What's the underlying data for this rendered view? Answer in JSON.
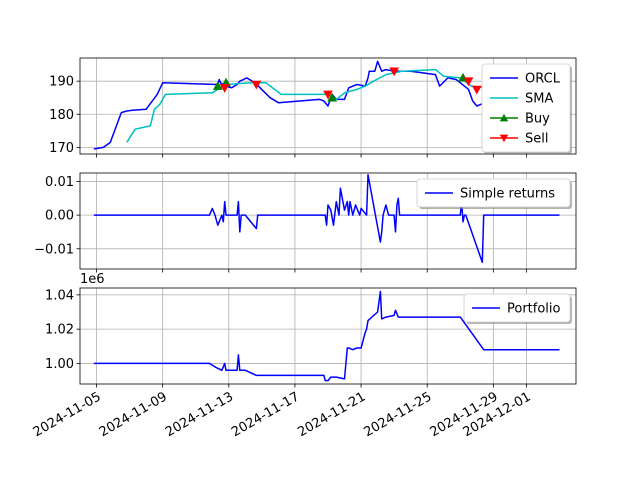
{
  "chart_data": [
    {
      "type": "line",
      "panel": "price",
      "ylim": [
        168,
        197
      ],
      "yticks": [
        170,
        180,
        190
      ],
      "grid": true,
      "legend_position": "top-right",
      "series": [
        {
          "name": "ORCL",
          "color": "#0000ff",
          "kind": "line",
          "x": [
            "2024-11-04T20:00",
            "2024-11-05T10:00",
            "2024-11-05T20:00",
            "2024-11-06T12:00",
            "2024-11-06T20:00",
            "2024-11-07T04:00",
            "2024-11-08T00:00",
            "2024-11-08T16:00",
            "2024-11-09T00:00",
            "2024-11-12T08:00",
            "2024-11-12T10:00",
            "2024-11-12T12:00",
            "2024-11-12T20:00",
            "2024-11-13T04:00",
            "2024-11-13T12:00",
            "2024-11-13T16:00",
            "2024-11-14T02:00",
            "2024-11-14T14:00",
            "2024-11-15T12:00",
            "2024-11-16T00:00",
            "2024-11-18T12:00",
            "2024-11-18T18:00",
            "2024-11-19T00:00",
            "2024-11-19T06:00",
            "2024-11-19T12:00",
            "2024-11-20T00:00",
            "2024-11-20T06:00",
            "2024-11-20T18:00",
            "2024-11-21T06:00",
            "2024-11-21T10:00",
            "2024-11-21T12:00",
            "2024-11-21T20:00",
            "2024-11-22T00:00",
            "2024-11-22T06:00",
            "2024-11-22T12:00",
            "2024-11-23T00:00",
            "2024-11-24T00:00",
            "2024-11-25T12:00",
            "2024-11-25T18:00",
            "2024-11-26T06:00",
            "2024-11-26T18:00",
            "2024-11-27T06:00",
            "2024-11-27T12:00",
            "2024-11-27T18:00",
            "2024-11-28T00:00",
            "2024-11-28T06:00",
            "2024-11-28T12:00"
          ],
          "y": [
            169.5,
            170.0,
            171.5,
            180.5,
            181.0,
            181.2,
            181.5,
            186.0,
            189.5,
            189.0,
            190.5,
            189.5,
            188.5,
            188.0,
            189.0,
            190.0,
            191.0,
            189.5,
            185.0,
            183.5,
            184.5,
            184.0,
            182.5,
            186.0,
            184.5,
            184.5,
            188.0,
            189.0,
            188.5,
            191.0,
            193.0,
            193.0,
            196.0,
            193.0,
            193.5,
            193.0,
            193.0,
            192.0,
            188.5,
            191.0,
            190.5,
            188.5,
            187.5,
            184.0,
            182.5,
            183.0,
            183.5
          ]
        },
        {
          "name": "SMA",
          "color": "#00bfbf",
          "kind": "line",
          "x": [
            "2024-11-06T20:00",
            "2024-11-07T08:00",
            "2024-11-08T06:00",
            "2024-11-08T12:00",
            "2024-11-08T20:00",
            "2024-11-09T04:00",
            "2024-11-12T00:00",
            "2024-11-12T20:00",
            "2024-11-14T08:00",
            "2024-11-15T06:00",
            "2024-11-16T04:00",
            "2024-11-19T00:00",
            "2024-11-19T12:00",
            "2024-11-20T00:00",
            "2024-11-20T18:00",
            "2024-11-21T06:00",
            "2024-11-21T18:00",
            "2024-11-22T12:00",
            "2024-11-23T12:00",
            "2024-11-25T12:00",
            "2024-11-26T00:00",
            "2024-11-27T00:00",
            "2024-11-27T16:00",
            "2024-11-28T12:00"
          ],
          "y": [
            171.5,
            175.5,
            176.5,
            181.5,
            183.0,
            186.0,
            186.5,
            189.0,
            189.5,
            189.5,
            186.0,
            186.0,
            184.5,
            186.5,
            187.5,
            188.5,
            190.0,
            192.0,
            193.0,
            193.5,
            191.5,
            191.0,
            188.5,
            188.0
          ]
        },
        {
          "name": "Buy",
          "color": "#008000",
          "kind": "marker",
          "marker": "triangle-up",
          "x": [
            "2024-11-12T08:00",
            "2024-11-12T20:00",
            "2024-11-19T06:00",
            "2024-11-27T04:00"
          ],
          "y": [
            188.5,
            189.5,
            185.0,
            191.0
          ]
        },
        {
          "name": "Sell",
          "color": "#ff0000",
          "kind": "marker",
          "marker": "triangle-down",
          "x": [
            "2024-11-12T18:00",
            "2024-11-14T16:00",
            "2024-11-19T00:00",
            "2024-11-23T00:00",
            "2024-11-27T12:00",
            "2024-11-28T00:00"
          ],
          "y": [
            188.0,
            189.0,
            186.0,
            193.0,
            190.0,
            187.5
          ]
        }
      ]
    },
    {
      "type": "line",
      "panel": "returns",
      "ylim": [
        -0.016,
        0.0125
      ],
      "yticks": [
        "0.01",
        "0.00",
        "−0.01"
      ],
      "ytick_values": [
        0.01,
        0.0,
        -0.01
      ],
      "grid": true,
      "legend_position": "top-right",
      "series": [
        {
          "name": "Simple returns",
          "color": "#0000ff",
          "kind": "line",
          "x": [
            "2024-11-04T20:00",
            "2024-11-11T20:00",
            "2024-11-12T00:00",
            "2024-11-12T04:00",
            "2024-11-12T08:00",
            "2024-11-12T14:00",
            "2024-11-12T16:00",
            "2024-11-12T18:00",
            "2024-11-12T20:00",
            "2024-11-13T00:00",
            "2024-11-13T12:00",
            "2024-11-13T14:00",
            "2024-11-13T16:00",
            "2024-11-13T18:00",
            "2024-11-14T00:00",
            "2024-11-14T16:00",
            "2024-11-14T18:00",
            "2024-11-18T20:00",
            "2024-11-18T22:00",
            "2024-11-19T00:00",
            "2024-11-19T04:00",
            "2024-11-19T08:00",
            "2024-11-19T12:00",
            "2024-11-19T16:00",
            "2024-11-19T18:00",
            "2024-11-20T00:00",
            "2024-11-20T04:00",
            "2024-11-20T06:00",
            "2024-11-20T08:00",
            "2024-11-20T12:00",
            "2024-11-20T16:00",
            "2024-11-20T18:00",
            "2024-11-20T22:00",
            "2024-11-21T00:00",
            "2024-11-21T04:00",
            "2024-11-21T08:00",
            "2024-11-21T10:00",
            "2024-11-22T04:00",
            "2024-11-22T06:00",
            "2024-11-22T08:00",
            "2024-11-22T12:00",
            "2024-11-22T16:00",
            "2024-11-23T00:00",
            "2024-11-23T02:00",
            "2024-11-23T04:00",
            "2024-11-23T06:00",
            "2024-11-23T08:00",
            "2024-11-23T10:00",
            "2024-11-27T00:00",
            "2024-11-27T02:00",
            "2024-11-27T04:00",
            "2024-11-27T06:00",
            "2024-11-27T08:00",
            "2024-11-28T08:00",
            "2024-11-28T10:00",
            "2024-11-28T12:00",
            "2024-12-03T00:00"
          ],
          "y": [
            0,
            0,
            0.002,
            0,
            -0.003,
            0,
            -0.002,
            0.004,
            0,
            0,
            0,
            0.004,
            -0.005,
            0,
            0,
            -0.004,
            0,
            0,
            -0.003,
            0.003,
            0.0015,
            -0.003,
            0.004,
            0,
            0.008,
            0.0015,
            0.004,
            0,
            0.004,
            0,
            0.003,
            0.002,
            0,
            0.002,
            0.001,
            0,
            0.012,
            -0.008,
            -0.005,
            0,
            0.003,
            0,
            0,
            -0.005,
            0.003,
            0.005,
            0,
            0,
            0,
            0.004,
            -0.002,
            0,
            0,
            -0.014,
            0,
            0,
            0
          ]
        }
      ]
    },
    {
      "type": "line",
      "panel": "portfolio",
      "ylim": [
        0.988,
        1.044
      ],
      "yticks": [
        "1.00",
        "1.02",
        "1.04"
      ],
      "ytick_values": [
        1.0,
        1.02,
        1.04
      ],
      "offset_text": "1e6",
      "grid": true,
      "legend_position": "top-right",
      "series": [
        {
          "name": "Portfolio",
          "color": "#0000ff",
          "kind": "line",
          "x": [
            "2024-11-04T20:00",
            "2024-11-11T20:00",
            "2024-11-12T04:00",
            "2024-11-12T14:00",
            "2024-11-12T18:00",
            "2024-11-12T20:00",
            "2024-11-13T12:00",
            "2024-11-13T14:00",
            "2024-11-13T16:00",
            "2024-11-14T00:00",
            "2024-11-14T16:00",
            "2024-11-18T18:00",
            "2024-11-18T20:00",
            "2024-11-19T00:00",
            "2024-11-19T04:00",
            "2024-11-19T12:00",
            "2024-11-20T00:00",
            "2024-11-20T04:00",
            "2024-11-20T06:00",
            "2024-11-20T12:00",
            "2024-11-20T18:00",
            "2024-11-21T00:00",
            "2024-11-21T06:00",
            "2024-11-21T08:00",
            "2024-11-21T10:00",
            "2024-11-22T00:00",
            "2024-11-22T04:00",
            "2024-11-22T06:00",
            "2024-11-22T12:00",
            "2024-11-23T00:00",
            "2024-11-23T02:00",
            "2024-11-23T06:00",
            "2024-11-23T08:00",
            "2024-11-27T00:00",
            "2024-11-28T10:00",
            "2024-12-03T00:00"
          ],
          "y": [
            1.0,
            1.0,
            0.998,
            0.996,
            1.0,
            0.996,
            0.996,
            1.005,
            0.996,
            0.996,
            0.993,
            0.993,
            0.99,
            0.99,
            0.992,
            0.992,
            0.991,
            1.009,
            1.009,
            1.008,
            1.009,
            1.009,
            1.018,
            1.02,
            1.025,
            1.03,
            1.042,
            1.026,
            1.027,
            1.028,
            1.031,
            1.027,
            1.027,
            1.027,
            1.008,
            1.008
          ]
        }
      ]
    }
  ],
  "x_axis": {
    "ticks": [
      "2024-11-05",
      "2024-11-09",
      "2024-11-13",
      "2024-11-17",
      "2024-11-21",
      "2024-11-25",
      "2024-11-29",
      "2024-12-01"
    ],
    "range": [
      "2024-11-04T00:00",
      "2024-12-04T00:00"
    ]
  }
}
